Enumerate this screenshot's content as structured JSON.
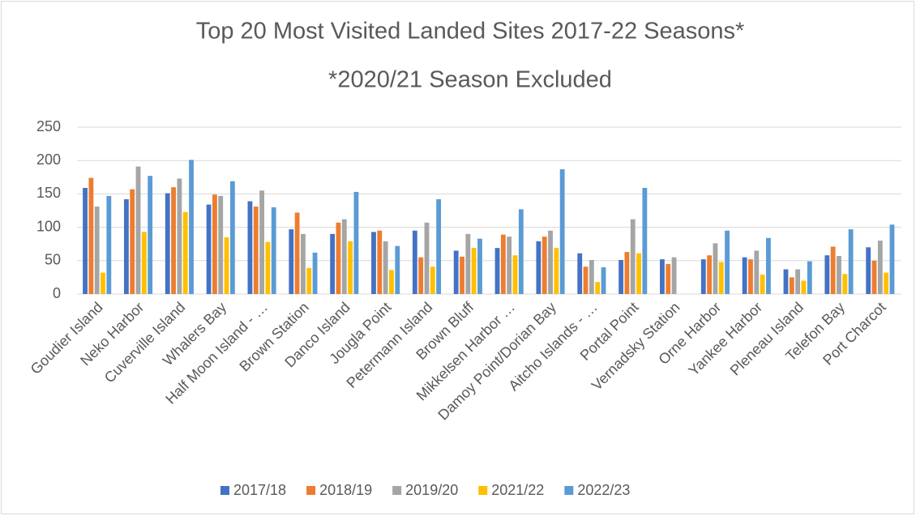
{
  "chart_data": {
    "type": "bar",
    "title": "Top 20 Most Visited Landed Sites 2017-22 Seasons*",
    "subtitle": "*2020/21 Season Excluded",
    "categories": [
      "Goudier Island",
      "Neko Harbor",
      "Cuverville Island",
      "Whalers Bay",
      "Half Moon Island - …",
      "Brown Station",
      "Danco Island",
      "Jougla Point",
      "Petermann Island",
      "Brown Bluff",
      "Mikkelsen Harbor …",
      "Damoy Point/Dorian Bay",
      "Aitcho Islands - …",
      "Portal Point",
      "Vernadsky Station",
      "Orne Harbor",
      "Yankee Harbor",
      "Pleneau Island",
      "Telefon Bay",
      "Port Charcot"
    ],
    "series": [
      {
        "name": "2017/18",
        "color": "#4472c4",
        "values": [
          159,
          142,
          151,
          134,
          139,
          97,
          90,
          93,
          95,
          65,
          69,
          79,
          61,
          51,
          52,
          52,
          55,
          37,
          58,
          70
        ]
      },
      {
        "name": "2018/19",
        "color": "#ed7d31",
        "values": [
          174,
          157,
          160,
          149,
          131,
          122,
          107,
          95,
          55,
          56,
          89,
          86,
          41,
          63,
          45,
          58,
          52,
          25,
          71,
          50
        ]
      },
      {
        "name": "2019/20",
        "color": "#a5a5a5",
        "values": [
          131,
          191,
          173,
          147,
          155,
          90,
          112,
          79,
          107,
          90,
          86,
          95,
          51,
          112,
          55,
          76,
          65,
          37,
          57,
          80
        ]
      },
      {
        "name": "2021/22",
        "color": "#ffc000",
        "values": [
          32,
          93,
          123,
          85,
          78,
          39,
          79,
          36,
          41,
          69,
          58,
          69,
          18,
          61,
          null,
          48,
          29,
          20,
          30,
          32
        ]
      },
      {
        "name": "2022/23",
        "color": "#5b9bd5",
        "values": [
          147,
          177,
          201,
          169,
          130,
          62,
          153,
          72,
          142,
          83,
          127,
          187,
          40,
          159,
          null,
          95,
          84,
          49,
          97,
          104
        ]
      }
    ],
    "ylim": [
      0,
      250
    ],
    "yticks": [
      0,
      50,
      100,
      150,
      200,
      250
    ],
    "grid": true,
    "legend": "bottom"
  }
}
